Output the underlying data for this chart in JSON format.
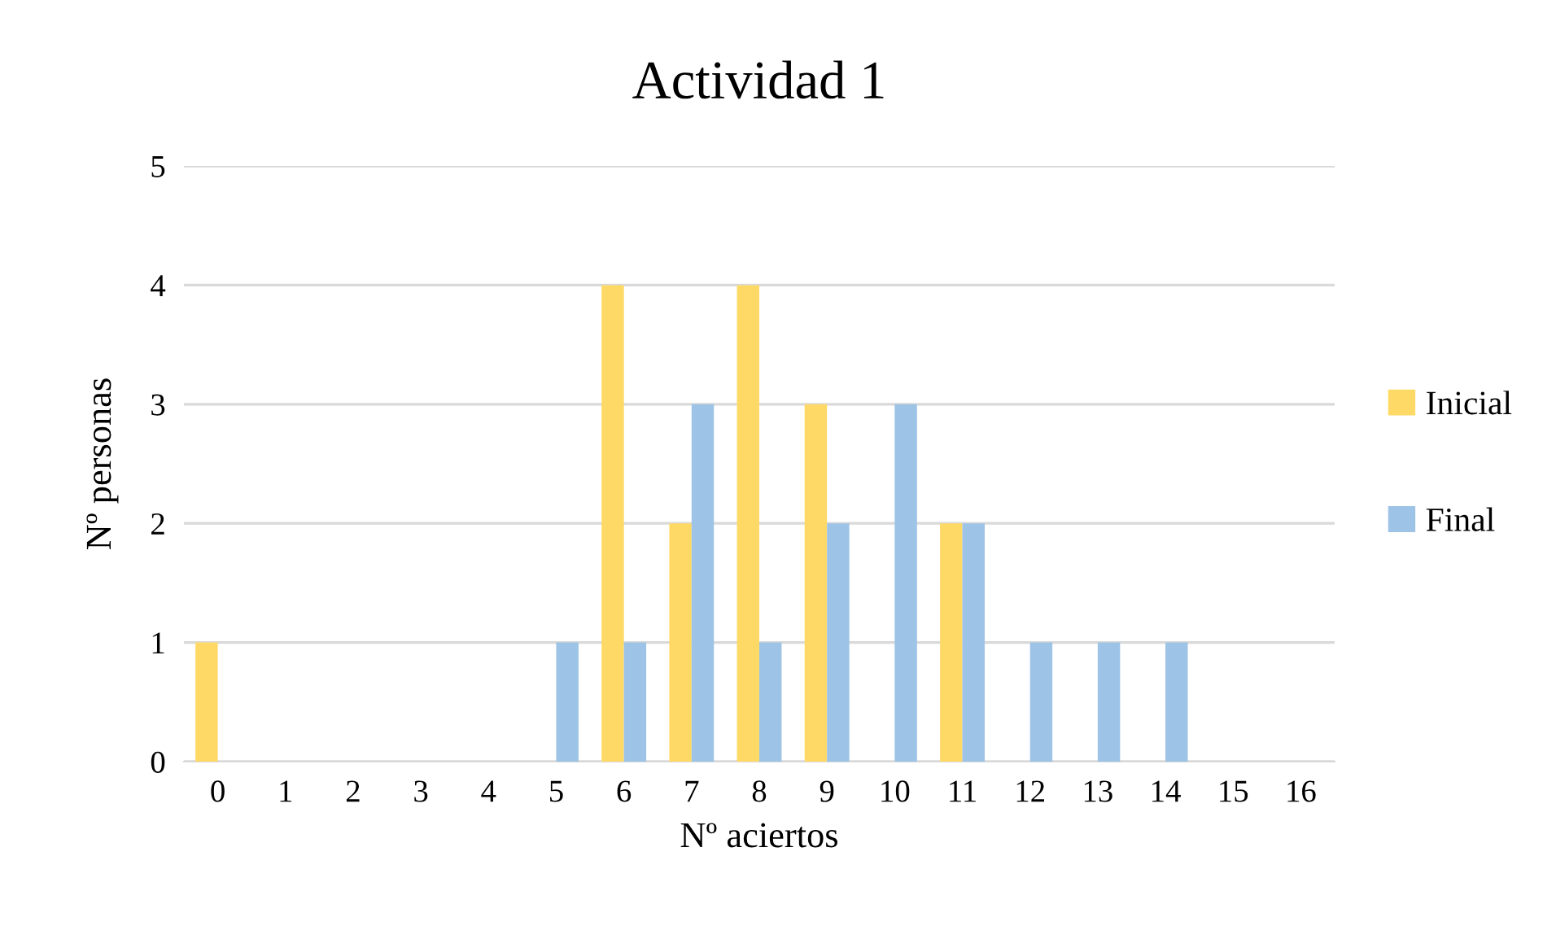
{
  "chart_data": {
    "type": "bar",
    "title": "Actividad 1",
    "xlabel": "Nº aciertos",
    "ylabel": "Nº personas",
    "categories": [
      "0",
      "1",
      "2",
      "3",
      "4",
      "5",
      "6",
      "7",
      "8",
      "9",
      "10",
      "11",
      "12",
      "13",
      "14",
      "15",
      "16"
    ],
    "series": [
      {
        "name": "Inicial",
        "color": "#ffd966",
        "values": [
          1,
          0,
          0,
          0,
          0,
          0,
          4,
          2,
          4,
          3,
          0,
          2,
          0,
          0,
          0,
          0,
          0
        ]
      },
      {
        "name": "Final",
        "color": "#9dc3e6",
        "values": [
          0,
          0,
          0,
          0,
          0,
          1,
          1,
          3,
          1,
          2,
          3,
          2,
          1,
          1,
          1,
          0,
          0
        ]
      }
    ],
    "ylim": [
      0,
      5
    ],
    "yticks": [
      0,
      1,
      2,
      3,
      4,
      5
    ],
    "grid": "y",
    "legend": "right"
  }
}
